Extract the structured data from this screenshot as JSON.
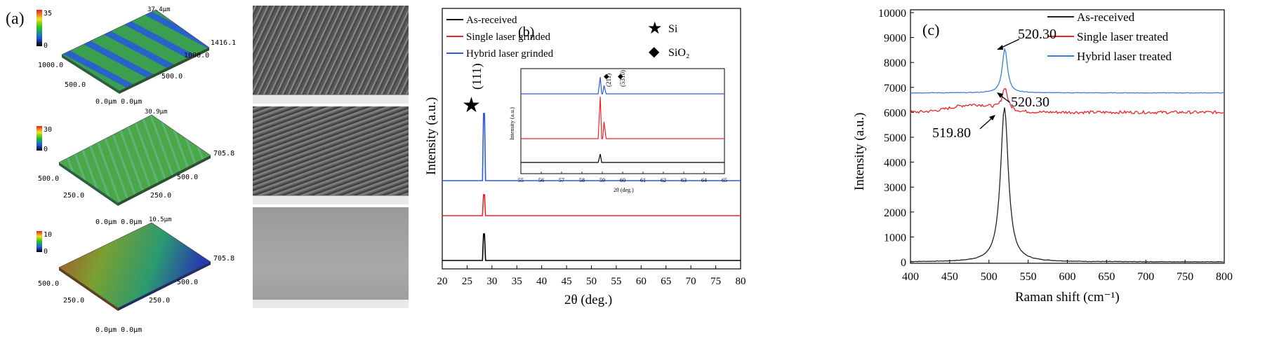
{
  "panel_a": {
    "label": "(a)",
    "maps": [
      {
        "scale_max": "35",
        "scale_min": "0",
        "top_label": "37.4μm",
        "x_label": "1000.0",
        "x_mid": "500.0",
        "origin": "0.0μm 0.0μm",
        "y_mid": "500.0",
        "y_label": "1000.0",
        "y_far": "1416.1"
      },
      {
        "scale_max": "30",
        "scale_min": "0",
        "top_label": "30.9μm",
        "x_label": "500.0",
        "x_mid": "250.0",
        "origin": "0.0μm 0.0μm",
        "y_mid": "250.0",
        "y_label": "500.0",
        "y_far": "705.8"
      },
      {
        "scale_max": "10",
        "scale_min": "0",
        "top_label": "10.5μm",
        "x_label": "500.0",
        "x_mid": "250.0",
        "origin": "0.0μm 0.0μm",
        "y_mid": "250.0",
        "y_label": "500.0",
        "y_far": "705.8"
      }
    ]
  },
  "chart_data": [
    {
      "type": "line",
      "panel_label": "(b)",
      "xlabel": "2θ (deg.)",
      "ylabel": "Intensity (a.u.)",
      "xlim": [
        20,
        80
      ],
      "xticks": [
        20,
        25,
        30,
        35,
        40,
        45,
        50,
        55,
        60,
        65,
        70,
        75,
        80
      ],
      "series": [
        {
          "name": "As-received",
          "color": "#000000",
          "peak_x": 28.4
        },
        {
          "name": "Single laser grinded",
          "color": "#e8262a",
          "peak_x": 28.4
        },
        {
          "name": "Hybrid laser grinded",
          "color": "#2f5bd8",
          "peak_x": 28.4
        }
      ],
      "annotations": {
        "peak_label": "(111)",
        "marker_si": "Si",
        "marker_sio2": "SiO₂"
      },
      "inset": {
        "xlabel": "2θ (deg.)",
        "ylabel": "Intensity (a.u.)",
        "xlim": [
          55,
          65
        ],
        "xticks": [
          55,
          56,
          57,
          58,
          59,
          60,
          61,
          62,
          63,
          64,
          65
        ],
        "peak_labels": [
          "(211)",
          "(5310)"
        ]
      }
    },
    {
      "type": "line",
      "panel_label": "(c)",
      "xlabel": "Raman shift (cm⁻¹)",
      "ylabel": "Intensity (a.u.)",
      "xlim": [
        400,
        800
      ],
      "ylim": [
        0,
        10000
      ],
      "xticks": [
        400,
        450,
        500,
        550,
        600,
        650,
        700,
        750,
        800
      ],
      "yticks": [
        0,
        1000,
        2000,
        3000,
        4000,
        5000,
        6000,
        7000,
        8000,
        9000,
        10000
      ],
      "series": [
        {
          "name": "As-received",
          "color": "#222222",
          "baseline": 0,
          "peak_x": 519.8,
          "peak_y": 6200
        },
        {
          "name": "Single laser treated",
          "color": "#e8262a",
          "baseline": 6000,
          "peak_x": 520.3,
          "peak_y": 6900
        },
        {
          "name": "Hybrid laser treated",
          "color": "#3a7fd6",
          "baseline": 6780,
          "peak_x": 520.3,
          "peak_y": 8550
        }
      ],
      "annotations": [
        "520.30",
        "520.30",
        "519.80"
      ]
    }
  ]
}
